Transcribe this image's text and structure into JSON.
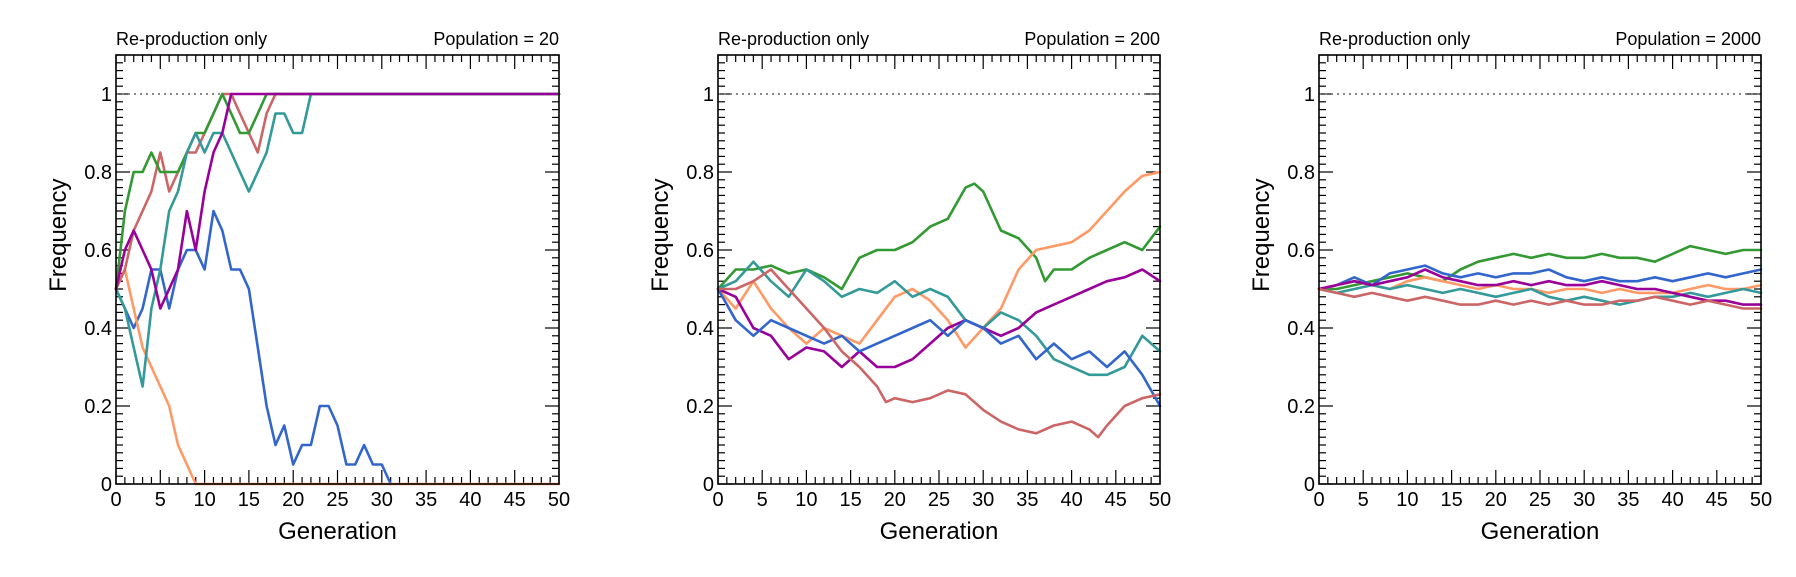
{
  "chart_data": [
    {
      "type": "line",
      "annotation_left": "Re-production only",
      "annotation_right": "Population = 20",
      "xlabel": "Generation",
      "ylabel": "Frequency",
      "xlim": [
        0,
        50
      ],
      "ylim": [
        0,
        1.1
      ],
      "xticks": [
        0,
        5,
        10,
        15,
        20,
        25,
        30,
        35,
        40,
        45,
        50
      ],
      "yticks": [
        0,
        0.2,
        0.4,
        0.6,
        0.8,
        1
      ],
      "reference_line": 1,
      "grid": false,
      "legend": "none",
      "series": [
        {
          "color": "#3366cc",
          "x": [
            0,
            1,
            2,
            3,
            4,
            5,
            6,
            7,
            8,
            9,
            10,
            11,
            12,
            13,
            14,
            15,
            16,
            17,
            18,
            19,
            20,
            21,
            22,
            23,
            24,
            25,
            26,
            27,
            28,
            29,
            30,
            31
          ],
          "y": [
            0.5,
            0.45,
            0.4,
            0.45,
            0.55,
            0.55,
            0.45,
            0.55,
            0.6,
            0.6,
            0.55,
            0.7,
            0.65,
            0.55,
            0.55,
            0.5,
            0.35,
            0.2,
            0.1,
            0.15,
            0.05,
            0.1,
            0.1,
            0.2,
            0.2,
            0.15,
            0.05,
            0.05,
            0.1,
            0.05,
            0.05,
            0.0
          ]
        },
        {
          "color": "#ff9966",
          "x": [
            0,
            1,
            2,
            3,
            4,
            5,
            6,
            7,
            8,
            9,
            50
          ],
          "y": [
            0.5,
            0.55,
            0.45,
            0.35,
            0.3,
            0.25,
            0.2,
            0.1,
            0.05,
            0.0,
            0.0
          ]
        },
        {
          "color": "#cc6666",
          "x": [
            0,
            1,
            2,
            3,
            4,
            5,
            6,
            7,
            8,
            9,
            10,
            11,
            12,
            13,
            14,
            15,
            16,
            17,
            18,
            19,
            50
          ],
          "y": [
            0.5,
            0.55,
            0.65,
            0.7,
            0.75,
            0.85,
            0.75,
            0.8,
            0.85,
            0.85,
            0.9,
            0.95,
            1.0,
            1.0,
            0.95,
            0.9,
            0.85,
            0.95,
            1.0,
            1.0,
            1.0
          ]
        },
        {
          "color": "#339933",
          "x": [
            0,
            1,
            2,
            3,
            4,
            5,
            6,
            7,
            8,
            9,
            10,
            11,
            12,
            13,
            14,
            15,
            16,
            17,
            50
          ],
          "y": [
            0.5,
            0.7,
            0.8,
            0.8,
            0.85,
            0.8,
            0.8,
            0.8,
            0.85,
            0.9,
            0.9,
            0.95,
            1.0,
            0.95,
            0.9,
            0.9,
            0.95,
            1.0,
            1.0
          ]
        },
        {
          "color": "#339999",
          "x": [
            0,
            1,
            2,
            3,
            4,
            5,
            6,
            7,
            8,
            9,
            10,
            11,
            12,
            13,
            14,
            15,
            16,
            17,
            18,
            19,
            20,
            21,
            22,
            50
          ],
          "y": [
            0.5,
            0.45,
            0.35,
            0.25,
            0.45,
            0.55,
            0.7,
            0.75,
            0.85,
            0.9,
            0.85,
            0.9,
            0.9,
            0.85,
            0.8,
            0.75,
            0.8,
            0.85,
            0.95,
            0.95,
            0.9,
            0.9,
            1.0,
            1.0
          ]
        },
        {
          "color": "#990099",
          "x": [
            0,
            1,
            2,
            3,
            4,
            5,
            6,
            7,
            8,
            9,
            10,
            11,
            12,
            13,
            50
          ],
          "y": [
            0.5,
            0.6,
            0.65,
            0.6,
            0.55,
            0.45,
            0.5,
            0.55,
            0.7,
            0.6,
            0.75,
            0.85,
            0.9,
            1.0,
            1.0
          ]
        }
      ]
    },
    {
      "type": "line",
      "annotation_left": "Re-production only",
      "annotation_right": "Population = 200",
      "xlabel": "Generation",
      "ylabel": "Frequency",
      "xlim": [
        0,
        50
      ],
      "ylim": [
        0,
        1.1
      ],
      "xticks": [
        0,
        5,
        10,
        15,
        20,
        25,
        30,
        35,
        40,
        45,
        50
      ],
      "yticks": [
        0,
        0.2,
        0.4,
        0.6,
        0.8,
        1
      ],
      "reference_line": 1,
      "grid": false,
      "legend": "none",
      "series": [
        {
          "color": "#339933",
          "x": [
            0,
            2,
            4,
            6,
            8,
            10,
            12,
            14,
            16,
            18,
            20,
            22,
            24,
            26,
            28,
            29,
            30,
            32,
            34,
            36,
            37,
            38,
            40,
            42,
            44,
            46,
            48,
            50
          ],
          "y": [
            0.5,
            0.55,
            0.55,
            0.56,
            0.54,
            0.55,
            0.53,
            0.5,
            0.58,
            0.6,
            0.6,
            0.62,
            0.66,
            0.68,
            0.76,
            0.77,
            0.75,
            0.65,
            0.63,
            0.58,
            0.52,
            0.55,
            0.55,
            0.58,
            0.6,
            0.62,
            0.6,
            0.66
          ]
        },
        {
          "color": "#ff9966",
          "x": [
            0,
            2,
            4,
            6,
            8,
            10,
            12,
            14,
            16,
            18,
            20,
            22,
            24,
            26,
            28,
            30,
            32,
            34,
            36,
            38,
            40,
            42,
            44,
            46,
            48,
            50
          ],
          "y": [
            0.5,
            0.45,
            0.52,
            0.45,
            0.4,
            0.36,
            0.4,
            0.38,
            0.36,
            0.42,
            0.48,
            0.5,
            0.47,
            0.42,
            0.35,
            0.4,
            0.45,
            0.55,
            0.6,
            0.61,
            0.62,
            0.65,
            0.7,
            0.75,
            0.79,
            0.8
          ]
        },
        {
          "color": "#339999",
          "x": [
            0,
            2,
            4,
            6,
            8,
            10,
            12,
            14,
            16,
            18,
            20,
            22,
            24,
            26,
            28,
            30,
            32,
            34,
            36,
            38,
            40,
            42,
            44,
            46,
            48,
            50
          ],
          "y": [
            0.5,
            0.52,
            0.57,
            0.52,
            0.48,
            0.55,
            0.52,
            0.48,
            0.5,
            0.49,
            0.52,
            0.48,
            0.5,
            0.48,
            0.42,
            0.4,
            0.44,
            0.42,
            0.38,
            0.32,
            0.3,
            0.28,
            0.28,
            0.3,
            0.38,
            0.34
          ]
        },
        {
          "color": "#990099",
          "x": [
            0,
            2,
            4,
            6,
            8,
            10,
            12,
            14,
            16,
            18,
            20,
            22,
            24,
            26,
            28,
            30,
            32,
            34,
            36,
            38,
            40,
            42,
            44,
            46,
            48,
            50
          ],
          "y": [
            0.5,
            0.48,
            0.4,
            0.38,
            0.32,
            0.35,
            0.34,
            0.3,
            0.34,
            0.3,
            0.3,
            0.32,
            0.36,
            0.4,
            0.42,
            0.4,
            0.38,
            0.4,
            0.44,
            0.46,
            0.48,
            0.5,
            0.52,
            0.53,
            0.55,
            0.52
          ]
        },
        {
          "color": "#3366cc",
          "x": [
            0,
            2,
            4,
            6,
            8,
            10,
            12,
            14,
            16,
            18,
            20,
            22,
            24,
            26,
            28,
            30,
            32,
            34,
            36,
            38,
            40,
            42,
            44,
            46,
            48,
            50
          ],
          "y": [
            0.5,
            0.42,
            0.38,
            0.42,
            0.4,
            0.38,
            0.36,
            0.38,
            0.34,
            0.36,
            0.38,
            0.4,
            0.42,
            0.38,
            0.42,
            0.4,
            0.36,
            0.38,
            0.32,
            0.36,
            0.32,
            0.34,
            0.3,
            0.34,
            0.28,
            0.2
          ]
        },
        {
          "color": "#cc6666",
          "x": [
            0,
            2,
            4,
            6,
            8,
            10,
            12,
            14,
            16,
            18,
            19,
            20,
            22,
            24,
            26,
            28,
            30,
            32,
            34,
            36,
            38,
            40,
            42,
            43,
            44,
            46,
            48,
            50
          ],
          "y": [
            0.5,
            0.5,
            0.52,
            0.55,
            0.5,
            0.45,
            0.4,
            0.34,
            0.3,
            0.25,
            0.21,
            0.22,
            0.21,
            0.22,
            0.24,
            0.23,
            0.19,
            0.16,
            0.14,
            0.13,
            0.15,
            0.16,
            0.14,
            0.12,
            0.15,
            0.2,
            0.22,
            0.23
          ]
        }
      ]
    },
    {
      "type": "line",
      "annotation_left": "Re-production only",
      "annotation_right": "Population = 2000",
      "xlabel": "Generation",
      "ylabel": "Frequency",
      "xlim": [
        0,
        50
      ],
      "ylim": [
        0,
        1.1
      ],
      "xticks": [
        0,
        5,
        10,
        15,
        20,
        25,
        30,
        35,
        40,
        45,
        50
      ],
      "yticks": [
        0,
        0.2,
        0.4,
        0.6,
        0.8,
        1
      ],
      "reference_line": 1,
      "grid": false,
      "legend": "none",
      "series": [
        {
          "color": "#339933",
          "x": [
            0,
            2,
            4,
            6,
            8,
            10,
            12,
            14,
            16,
            18,
            20,
            22,
            24,
            26,
            28,
            30,
            32,
            34,
            36,
            38,
            40,
            42,
            44,
            46,
            48,
            50
          ],
          "y": [
            0.5,
            0.5,
            0.51,
            0.52,
            0.53,
            0.54,
            0.53,
            0.52,
            0.55,
            0.57,
            0.58,
            0.59,
            0.58,
            0.59,
            0.58,
            0.58,
            0.59,
            0.58,
            0.58,
            0.57,
            0.59,
            0.61,
            0.6,
            0.59,
            0.6,
            0.6
          ]
        },
        {
          "color": "#3366cc",
          "x": [
            0,
            2,
            4,
            6,
            8,
            10,
            12,
            14,
            16,
            18,
            20,
            22,
            24,
            26,
            28,
            30,
            32,
            34,
            36,
            38,
            40,
            42,
            44,
            46,
            48,
            50
          ],
          "y": [
            0.5,
            0.51,
            0.53,
            0.51,
            0.54,
            0.55,
            0.56,
            0.54,
            0.53,
            0.54,
            0.53,
            0.54,
            0.54,
            0.55,
            0.53,
            0.52,
            0.53,
            0.52,
            0.52,
            0.53,
            0.52,
            0.53,
            0.54,
            0.53,
            0.54,
            0.55
          ]
        },
        {
          "color": "#ff9966",
          "x": [
            0,
            2,
            4,
            6,
            8,
            10,
            12,
            14,
            16,
            18,
            20,
            22,
            24,
            26,
            28,
            30,
            32,
            34,
            36,
            38,
            40,
            42,
            44,
            46,
            48,
            50
          ],
          "y": [
            0.5,
            0.51,
            0.52,
            0.51,
            0.5,
            0.52,
            0.53,
            0.52,
            0.51,
            0.5,
            0.51,
            0.5,
            0.5,
            0.49,
            0.5,
            0.5,
            0.49,
            0.5,
            0.49,
            0.49,
            0.49,
            0.5,
            0.51,
            0.5,
            0.5,
            0.51
          ]
        },
        {
          "color": "#339999",
          "x": [
            0,
            2,
            4,
            6,
            8,
            10,
            12,
            14,
            16,
            18,
            20,
            22,
            24,
            26,
            28,
            30,
            32,
            34,
            36,
            38,
            40,
            42,
            44,
            46,
            48,
            50
          ],
          "y": [
            0.5,
            0.49,
            0.5,
            0.51,
            0.5,
            0.51,
            0.5,
            0.49,
            0.5,
            0.49,
            0.48,
            0.49,
            0.5,
            0.48,
            0.47,
            0.48,
            0.47,
            0.46,
            0.47,
            0.48,
            0.48,
            0.49,
            0.48,
            0.49,
            0.5,
            0.49
          ]
        },
        {
          "color": "#990099",
          "x": [
            0,
            2,
            4,
            6,
            8,
            10,
            12,
            14,
            16,
            18,
            20,
            22,
            24,
            26,
            28,
            30,
            32,
            34,
            36,
            38,
            40,
            42,
            44,
            46,
            48,
            50
          ],
          "y": [
            0.5,
            0.51,
            0.52,
            0.51,
            0.52,
            0.53,
            0.55,
            0.53,
            0.52,
            0.51,
            0.51,
            0.52,
            0.51,
            0.52,
            0.51,
            0.51,
            0.52,
            0.51,
            0.5,
            0.5,
            0.49,
            0.48,
            0.47,
            0.47,
            0.46,
            0.46
          ]
        },
        {
          "color": "#cc6666",
          "x": [
            0,
            2,
            4,
            6,
            8,
            10,
            12,
            14,
            16,
            18,
            20,
            22,
            24,
            26,
            28,
            30,
            32,
            34,
            36,
            38,
            40,
            42,
            44,
            46,
            48,
            50
          ],
          "y": [
            0.5,
            0.49,
            0.48,
            0.49,
            0.48,
            0.47,
            0.48,
            0.47,
            0.46,
            0.46,
            0.47,
            0.46,
            0.47,
            0.46,
            0.47,
            0.46,
            0.46,
            0.47,
            0.47,
            0.48,
            0.47,
            0.46,
            0.47,
            0.46,
            0.45,
            0.45
          ]
        }
      ]
    }
  ]
}
